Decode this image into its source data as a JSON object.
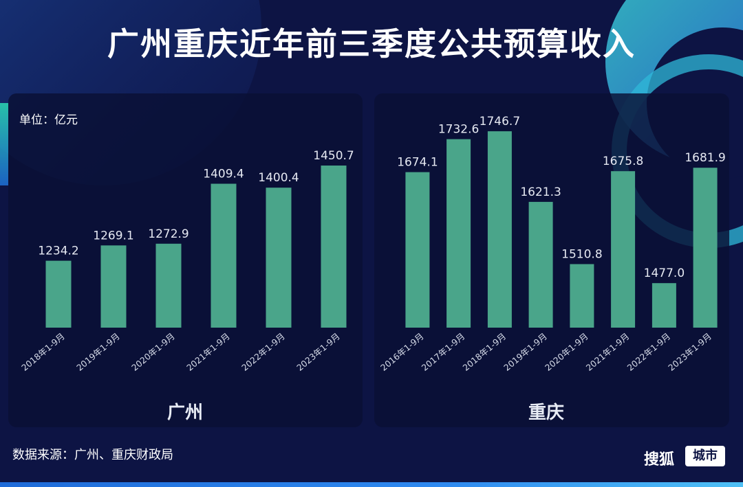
{
  "title": "广州重庆近年前三季度公共预算收入",
  "unit_label": "单位：亿元",
  "source": "数据来源：广州、重庆财政局",
  "brand": {
    "name": "搜狐",
    "tag": "城市"
  },
  "colors": {
    "bar": "#4aa58a",
    "background": "#0d1444",
    "panel": "#0a1034"
  },
  "chart_data": [
    {
      "type": "bar",
      "title": "广州",
      "unit": "亿元",
      "categories": [
        "2018年1-9月",
        "2019年1-9月",
        "2020年1-9月",
        "2021年1-9月",
        "2022年1-9月",
        "2023年1-9月"
      ],
      "values": [
        1234.2,
        1269.1,
        1272.9,
        1409.4,
        1400.4,
        1450.7
      ],
      "value_labels": [
        "1234.2",
        "1269.1",
        "1272.9",
        "1409.4",
        "1400.4",
        "1450.7"
      ]
    },
    {
      "type": "bar",
      "title": "重庆",
      "unit": "亿元",
      "categories": [
        "2016年1-9月",
        "2017年1-9月",
        "2018年1-9月",
        "2019年1-9月",
        "2020年1-9月",
        "2021年1-9月",
        "2022年1-9月",
        "2023年1-9月"
      ],
      "values": [
        1674.1,
        1732.6,
        1746.7,
        1621.3,
        1510.8,
        1675.8,
        1477.0,
        1681.9
      ],
      "value_labels": [
        "1674.1",
        "1732.6",
        "1746.7",
        "1621.3",
        "1510.8",
        "1675.8",
        "1477.0",
        "1681.9"
      ]
    }
  ]
}
